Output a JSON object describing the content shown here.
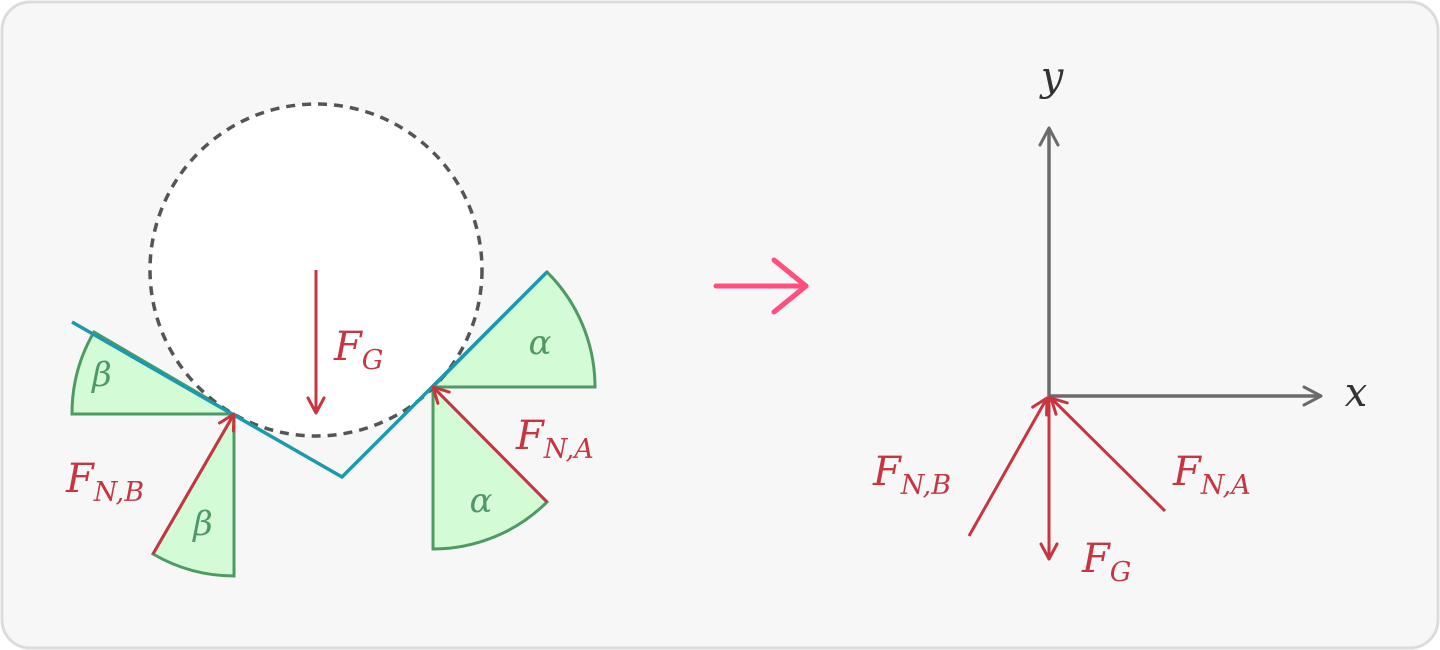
{
  "colors": {
    "panel_fill": "#f7f7f7",
    "panel_border": "#dcdcdc",
    "circle_stroke": "#555555",
    "circle_fill": "#ffffff",
    "surface": "#1a9aac",
    "wedge_fill": "#d3fbd6",
    "wedge_stroke": "#4f9a63",
    "angle_text": "#4f9a63",
    "force": "#c73640",
    "axes": "#6b6b6b",
    "transition_arrow": "#ff4f7f"
  },
  "left": {
    "force_gravity": {
      "base": "F",
      "sub": "G"
    },
    "force_normal_a": {
      "base": "F",
      "sub": "N,A"
    },
    "force_normal_b": {
      "base": "F",
      "sub": "N,B"
    },
    "angle_alpha": "α",
    "angle_beta": "β"
  },
  "right": {
    "axis_x_label": "x",
    "axis_y_label": "y",
    "force_gravity": {
      "base": "F",
      "sub": "G"
    },
    "force_normal_a": {
      "base": "F",
      "sub": "N,A"
    },
    "force_normal_b": {
      "base": "F",
      "sub": "N,B"
    }
  }
}
